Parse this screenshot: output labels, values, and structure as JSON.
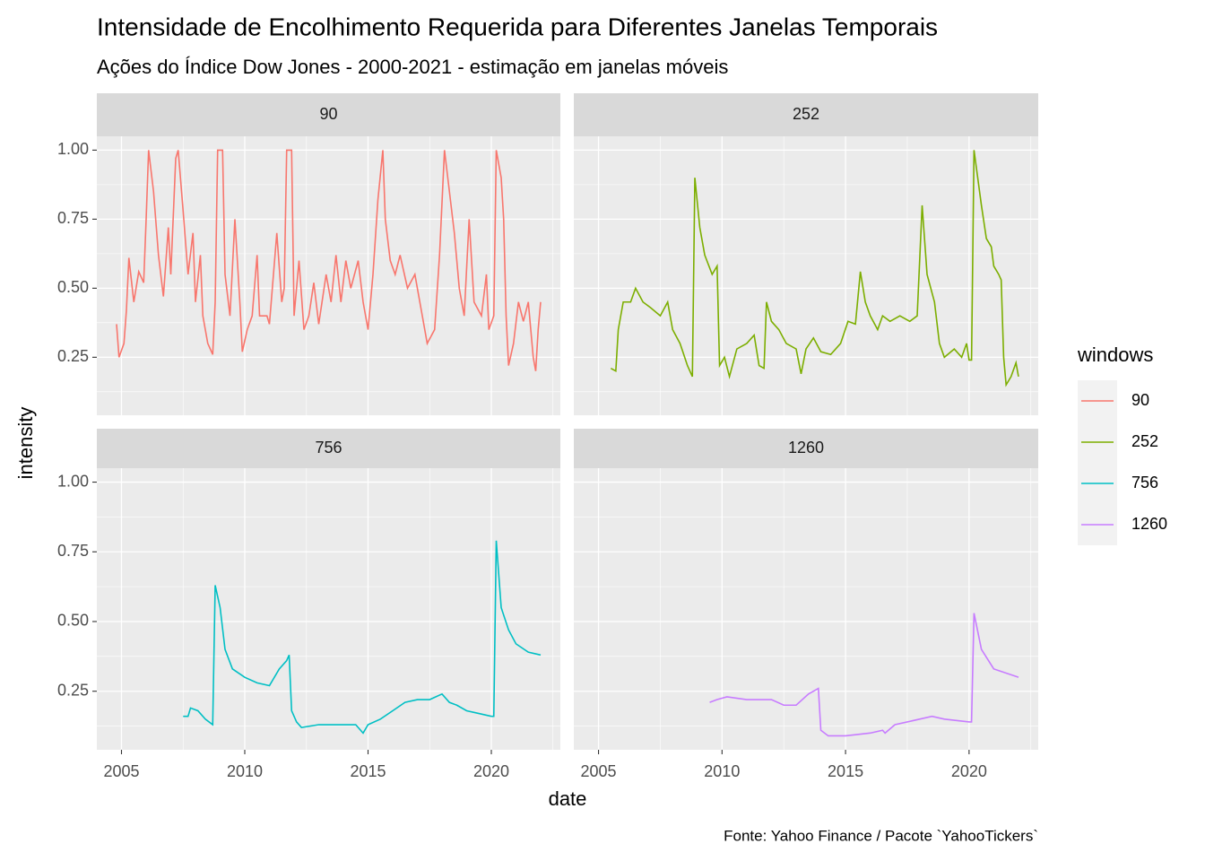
{
  "chart_data": {
    "type": "line",
    "facet": true,
    "title": "Intensidade de Encolhimento Requerida para Diferentes Janelas Temporais",
    "subtitle": "Ações do Índice Dow Jones - 2000-2021 - estimação em janelas móveis",
    "xlabel": "date",
    "ylabel": "intensity",
    "caption": "Fonte: Yahoo Finance / Pacote `YahooTickers`",
    "legend_title": "windows",
    "legend": "right",
    "grid": true,
    "xlim": [
      2004.0,
      2022.8
    ],
    "xticks": [
      2005,
      2010,
      2015,
      2020
    ],
    "x_minor": [
      2007.5,
      2012.5,
      2017.5,
      2022.5
    ],
    "ylim": [
      0.04,
      1.05
    ],
    "yticks": [
      0.25,
      {
        "value": 0.5,
        "label": "0.50"
      },
      0.75,
      {
        "value": 1,
        "label": "1.00"
      }
    ],
    "y_minor": [
      0.125,
      0.375,
      0.625,
      0.875
    ],
    "series": [
      {
        "name": "90",
        "color": "#F8766D",
        "x": [
          2004.8,
          2004.9,
          2005.1,
          2005.2,
          2005.3,
          2005.5,
          2005.7,
          2005.9,
          2006.0,
          2006.1,
          2006.3,
          2006.5,
          2006.7,
          2006.9,
          2007.0,
          2007.2,
          2007.3,
          2007.5,
          2007.7,
          2007.9,
          2008.0,
          2008.2,
          2008.3,
          2008.5,
          2008.7,
          2008.8,
          2008.9,
          2009.1,
          2009.2,
          2009.4,
          2009.6,
          2009.8,
          2009.9,
          2010.1,
          2010.3,
          2010.5,
          2010.6,
          2010.9,
          2011.0,
          2011.3,
          2011.5,
          2011.6,
          2011.7,
          2011.9,
          2012.0,
          2012.2,
          2012.4,
          2012.6,
          2012.8,
          2013.0,
          2013.3,
          2013.5,
          2013.7,
          2013.9,
          2014.1,
          2014.3,
          2014.6,
          2014.8,
          2015.0,
          2015.2,
          2015.4,
          2015.6,
          2015.7,
          2015.9,
          2016.1,
          2016.3,
          2016.6,
          2016.9,
          2017.2,
          2017.4,
          2017.7,
          2017.9,
          2018.1,
          2018.3,
          2018.5,
          2018.7,
          2018.9,
          2019.1,
          2019.3,
          2019.6,
          2019.8,
          2019.9,
          2020.1,
          2020.2,
          2020.4,
          2020.5,
          2020.6,
          2020.7,
          2020.9,
          2021.1,
          2021.3,
          2021.5,
          2021.7,
          2021.8,
          2021.9,
          2022.0
        ],
        "values": [
          0.37,
          0.25,
          0.3,
          0.42,
          0.61,
          0.45,
          0.56,
          0.52,
          0.75,
          1.0,
          0.85,
          0.62,
          0.47,
          0.72,
          0.55,
          0.97,
          1.0,
          0.78,
          0.55,
          0.7,
          0.45,
          0.62,
          0.4,
          0.3,
          0.26,
          0.45,
          1.0,
          1.0,
          0.55,
          0.4,
          0.75,
          0.45,
          0.27,
          0.35,
          0.4,
          0.62,
          0.4,
          0.4,
          0.37,
          0.7,
          0.45,
          0.5,
          1.0,
          1.0,
          0.4,
          0.6,
          0.35,
          0.4,
          0.52,
          0.37,
          0.55,
          0.45,
          0.62,
          0.45,
          0.6,
          0.5,
          0.6,
          0.45,
          0.35,
          0.55,
          0.82,
          1.0,
          0.75,
          0.6,
          0.55,
          0.62,
          0.5,
          0.55,
          0.4,
          0.3,
          0.35,
          0.62,
          1.0,
          0.85,
          0.7,
          0.5,
          0.4,
          0.75,
          0.45,
          0.4,
          0.55,
          0.35,
          0.4,
          1.0,
          0.9,
          0.75,
          0.4,
          0.22,
          0.3,
          0.45,
          0.38,
          0.45,
          0.25,
          0.2,
          0.35,
          0.45
        ]
      },
      {
        "name": "252",
        "color": "#7CAE00",
        "x": [
          2005.5,
          2005.7,
          2005.8,
          2006.0,
          2006.3,
          2006.5,
          2006.8,
          2007.1,
          2007.5,
          2007.8,
          2008.0,
          2008.3,
          2008.6,
          2008.8,
          2008.9,
          2009.1,
          2009.3,
          2009.6,
          2009.8,
          2009.9,
          2010.1,
          2010.3,
          2010.6,
          2011.0,
          2011.3,
          2011.5,
          2011.7,
          2011.8,
          2012.0,
          2012.3,
          2012.6,
          2013.0,
          2013.2,
          2013.4,
          2013.7,
          2014.0,
          2014.4,
          2014.8,
          2015.1,
          2015.4,
          2015.6,
          2015.8,
          2016.0,
          2016.3,
          2016.5,
          2016.8,
          2017.2,
          2017.6,
          2017.9,
          2018.1,
          2018.3,
          2018.6,
          2018.8,
          2019.0,
          2019.4,
          2019.7,
          2019.9,
          2020.0,
          2020.1,
          2020.2,
          2020.5,
          2020.7,
          2020.9,
          2021.0,
          2021.2,
          2021.3,
          2021.4,
          2021.5,
          2021.7,
          2021.9,
          2022.0
        ],
        "values": [
          0.21,
          0.2,
          0.35,
          0.45,
          0.45,
          0.5,
          0.45,
          0.43,
          0.4,
          0.45,
          0.35,
          0.3,
          0.22,
          0.18,
          0.9,
          0.72,
          0.62,
          0.55,
          0.58,
          0.22,
          0.25,
          0.18,
          0.28,
          0.3,
          0.33,
          0.22,
          0.21,
          0.45,
          0.38,
          0.35,
          0.3,
          0.28,
          0.19,
          0.28,
          0.32,
          0.27,
          0.26,
          0.3,
          0.38,
          0.37,
          0.56,
          0.45,
          0.4,
          0.35,
          0.4,
          0.38,
          0.4,
          0.38,
          0.4,
          0.8,
          0.55,
          0.45,
          0.3,
          0.25,
          0.28,
          0.25,
          0.3,
          0.24,
          0.24,
          1.0,
          0.8,
          0.68,
          0.65,
          0.58,
          0.55,
          0.53,
          0.25,
          0.15,
          0.18,
          0.23,
          0.18
        ]
      },
      {
        "name": "756",
        "color": "#00BFC4",
        "x": [
          2007.5,
          2007.7,
          2007.8,
          2008.1,
          2008.4,
          2008.7,
          2008.8,
          2009.0,
          2009.2,
          2009.5,
          2010.0,
          2010.5,
          2011.0,
          2011.4,
          2011.7,
          2011.8,
          2011.9,
          2012.1,
          2012.3,
          2013.0,
          2014.0,
          2014.5,
          2014.8,
          2015.0,
          2015.5,
          2016.0,
          2016.5,
          2017.0,
          2017.5,
          2018.0,
          2018.3,
          2018.6,
          2019.0,
          2019.5,
          2020.0,
          2020.1,
          2020.2,
          2020.4,
          2020.7,
          2021.0,
          2021.5,
          2022.0
        ],
        "values": [
          0.16,
          0.16,
          0.19,
          0.18,
          0.15,
          0.13,
          0.63,
          0.55,
          0.4,
          0.33,
          0.3,
          0.28,
          0.27,
          0.33,
          0.36,
          0.38,
          0.18,
          0.14,
          0.12,
          0.13,
          0.13,
          0.13,
          0.1,
          0.13,
          0.15,
          0.18,
          0.21,
          0.22,
          0.22,
          0.24,
          0.21,
          0.2,
          0.18,
          0.17,
          0.16,
          0.16,
          0.79,
          0.55,
          0.47,
          0.42,
          0.39,
          0.38
        ]
      },
      {
        "name": "1260",
        "color": "#C77CFF",
        "x": [
          2009.5,
          2009.8,
          2010.2,
          2011.0,
          2012.0,
          2012.5,
          2013.0,
          2013.5,
          2013.9,
          2014.0,
          2014.3,
          2015.0,
          2016.0,
          2016.5,
          2016.6,
          2017.0,
          2018.0,
          2018.5,
          2019.0,
          2020.0,
          2020.1,
          2020.2,
          2020.5,
          2021.0,
          2022.0
        ],
        "values": [
          0.21,
          0.22,
          0.23,
          0.22,
          0.22,
          0.2,
          0.2,
          0.24,
          0.26,
          0.11,
          0.09,
          0.09,
          0.1,
          0.11,
          0.1,
          0.13,
          0.15,
          0.16,
          0.15,
          0.14,
          0.14,
          0.53,
          0.4,
          0.33,
          0.3
        ]
      }
    ]
  }
}
